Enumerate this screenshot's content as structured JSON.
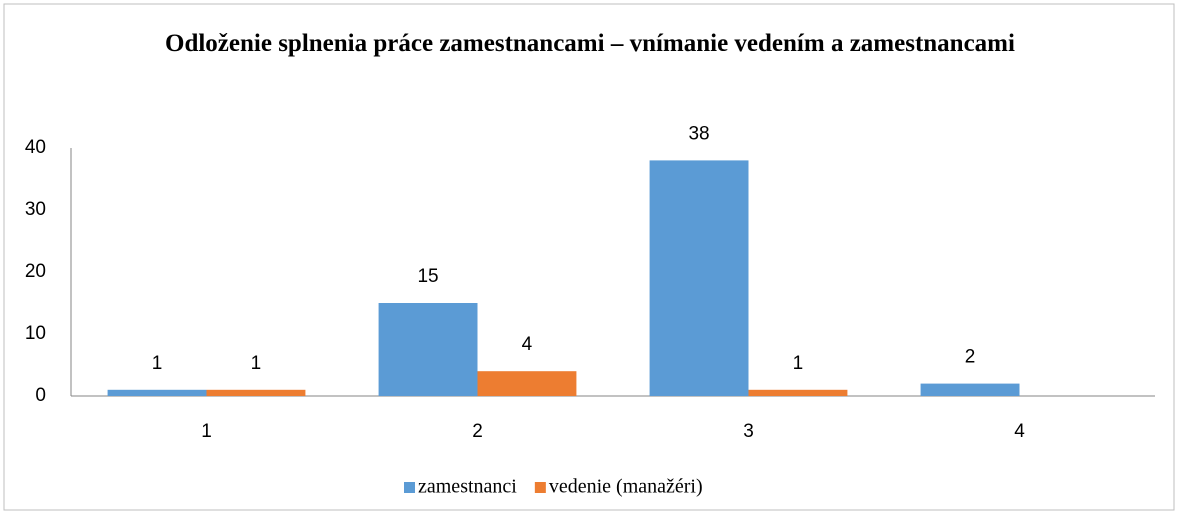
{
  "chart_data": {
    "type": "bar",
    "title": "Odloženie splnenia práce zamestnancami – vnímanie vedením a zamestnancami",
    "categories": [
      "1",
      "2",
      "3",
      "4"
    ],
    "series": [
      {
        "name": "zamestnanci",
        "color": "#5b9bd5",
        "values": [
          1,
          15,
          38,
          2
        ]
      },
      {
        "name": "vedenie (manažéri)",
        "color": "#ed7d31",
        "values": [
          1,
          4,
          1,
          null
        ]
      }
    ],
    "ylim": [
      0,
      40
    ],
    "yticks": [
      0,
      10,
      20,
      30,
      40
    ],
    "grid": false,
    "legend": "bottom"
  }
}
